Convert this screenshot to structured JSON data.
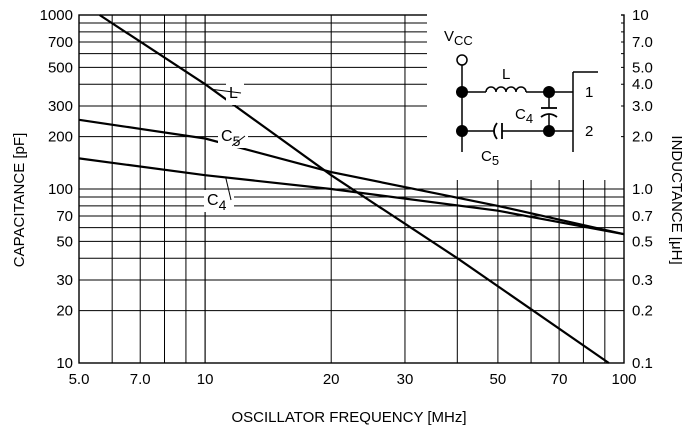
{
  "chart_data": {
    "type": "line",
    "xlabel": "OSCILLATOR FREQUENCY [MHz]",
    "ylabel": "CAPACITANCE [pF]",
    "y2label": "INDUCTANCE [μH]",
    "x_scale": "log",
    "y_scale": "log",
    "y2_scale": "log",
    "xlim": [
      5,
      100
    ],
    "ylim": [
      10,
      1000
    ],
    "y2lim": [
      0.1,
      10
    ],
    "grid": true,
    "x_ticks": [
      "5.0",
      "7.0",
      "10",
      "20",
      "30",
      "50",
      "70",
      "100"
    ],
    "x_tick_values": [
      5,
      7,
      10,
      20,
      30,
      50,
      70,
      100
    ],
    "y_ticks": [
      "1000",
      "700",
      "500",
      "300",
      "200",
      "100",
      "70",
      "50",
      "30",
      "20",
      "10"
    ],
    "y_tick_values": [
      1000,
      700,
      500,
      300,
      200,
      100,
      70,
      50,
      30,
      20,
      10
    ],
    "y2_ticks": [
      "10",
      "7.0",
      "5.0",
      "4.0",
      "3.0",
      "2.0",
      "1.0",
      "0.7",
      "0.5",
      "0.3",
      "0.2",
      "0.1"
    ],
    "y2_tick_values": [
      10,
      7,
      5,
      4,
      3,
      2,
      1,
      0.7,
      0.5,
      0.3,
      0.2,
      0.1
    ],
    "series": [
      {
        "name": "L",
        "axis": "right",
        "unit": "μH",
        "x": [
          5.6,
          10,
          20,
          40,
          92
        ],
        "y": [
          10,
          4,
          1.2,
          0.4,
          0.1
        ]
      },
      {
        "name": "C5",
        "axis": "left",
        "unit": "pF",
        "x": [
          5,
          10,
          20,
          50,
          100
        ],
        "y": [
          250,
          195,
          125,
          80,
          55
        ]
      },
      {
        "name": "C4",
        "axis": "left",
        "unit": "pF",
        "x": [
          5,
          10,
          20,
          50,
          100
        ],
        "y": [
          150,
          120,
          100,
          75,
          55
        ]
      }
    ],
    "labels": [
      {
        "series": "L",
        "text": "L",
        "sub": ""
      },
      {
        "series": "C5",
        "text": "C",
        "sub": "5"
      },
      {
        "series": "C4",
        "text": "C",
        "sub": "4"
      }
    ]
  },
  "circuit": {
    "vcc": "V",
    "vcc_sub": "CC",
    "inductor": "L",
    "c4": "C",
    "c4_sub": "4",
    "c5": "C",
    "c5_sub": "5",
    "pin1": "1",
    "pin2": "2"
  }
}
